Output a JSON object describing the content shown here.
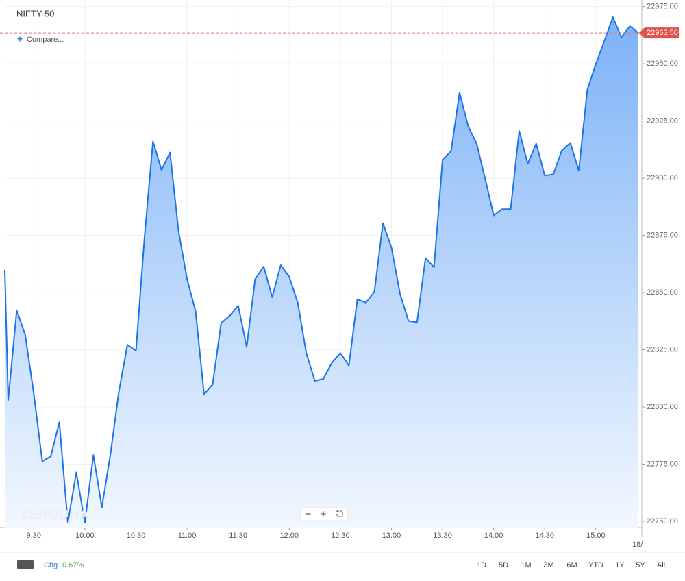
{
  "chart_data": {
    "type": "area",
    "title": "NIFTY 50",
    "compare": "Compare...",
    "watermark": "ZERODHA",
    "x": [
      553,
      555,
      560,
      565,
      570,
      575,
      580,
      585,
      590,
      595,
      600,
      605,
      610,
      615,
      620,
      625,
      630,
      635,
      640,
      645,
      650,
      655,
      660,
      665,
      670,
      675,
      680,
      685,
      690,
      695,
      700,
      705,
      710,
      715,
      720,
      725,
      730,
      735,
      740,
      745,
      750,
      755,
      760,
      765,
      770,
      775,
      780,
      785,
      790,
      795,
      800,
      805,
      810,
      815,
      820,
      825,
      830,
      835,
      840,
      845,
      850,
      855,
      860,
      865,
      870,
      875,
      880,
      885,
      890,
      895,
      900,
      905,
      910,
      915,
      920,
      925
    ],
    "values": [
      22860,
      22803,
      22842.2,
      22831.5,
      22805.9,
      22776.3,
      22778.4,
      22793.4,
      22749.4,
      22771.4,
      22749.4,
      22779,
      22756.1,
      22779.3,
      22806.8,
      22827.2,
      22824.5,
      22874,
      22916.1,
      22903.6,
      22911.2,
      22877,
      22855.9,
      22841.9,
      22805.6,
      22809.8,
      22836.7,
      22839.8,
      22844.3,
      22826.3,
      22855.9,
      22861.4,
      22848,
      22862,
      22856.9,
      22845.6,
      22823.6,
      22811.4,
      22812.3,
      22819.3,
      22823.6,
      22818.1,
      22847.1,
      22845.6,
      22850.4,
      22880.4,
      22869.7,
      22849.5,
      22837.6,
      22837,
      22865.1,
      22861.1,
      22908.1,
      22911.8,
      22937.4,
      22922.8,
      22915.2,
      22899.9,
      22883.7,
      22886.5,
      22886.5,
      22920.7,
      22906.3,
      22915.2,
      22901.1,
      22901.7,
      22912.1,
      22915.5,
      22903.3,
      22938.7,
      22950,
      22960,
      22970.4,
      22961.6,
      22966.5,
      22963.5
    ],
    "color": "#1a73e8",
    "xlim": [
      553,
      927
    ],
    "xticks": [
      {
        "value": 570,
        "label": "9:30"
      },
      {
        "value": 600,
        "label": "10:00"
      },
      {
        "value": 630,
        "label": "10:30"
      },
      {
        "value": 660,
        "label": "11:00"
      },
      {
        "value": 690,
        "label": "11:30"
      },
      {
        "value": 720,
        "label": "12:00"
      },
      {
        "value": 750,
        "label": "12:30"
      },
      {
        "value": 780,
        "label": "13:00"
      },
      {
        "value": 810,
        "label": "13:30"
      },
      {
        "value": 840,
        "label": "14:00"
      },
      {
        "value": 870,
        "label": "14:30"
      },
      {
        "value": 900,
        "label": "15:00"
      }
    ],
    "date_label": "18/",
    "ylim": [
      22747.3,
      22977.9
    ],
    "yticks": [
      {
        "value": 22750,
        "label": "22750.00"
      },
      {
        "value": 22775,
        "label": "22775.00"
      },
      {
        "value": 22800,
        "label": "22800.00"
      },
      {
        "value": 22825,
        "label": "22825.00"
      },
      {
        "value": 22850,
        "label": "22850.00"
      },
      {
        "value": 22875,
        "label": "22875.00"
      },
      {
        "value": 22900,
        "label": "22900.00"
      },
      {
        "value": 22925,
        "label": "22925.00"
      },
      {
        "value": 22950,
        "label": "22950.00"
      },
      {
        "value": 22975,
        "label": "22975.00"
      }
    ],
    "grid": true,
    "price_marker": {
      "value": 22963.5,
      "label": "22963.50"
    },
    "change_label": "Chg.",
    "change": "0.67%",
    "ranges": [
      "1D",
      "5D",
      "1M",
      "3M",
      "6M",
      "YTD",
      "1Y",
      "5Y",
      "All"
    ]
  }
}
